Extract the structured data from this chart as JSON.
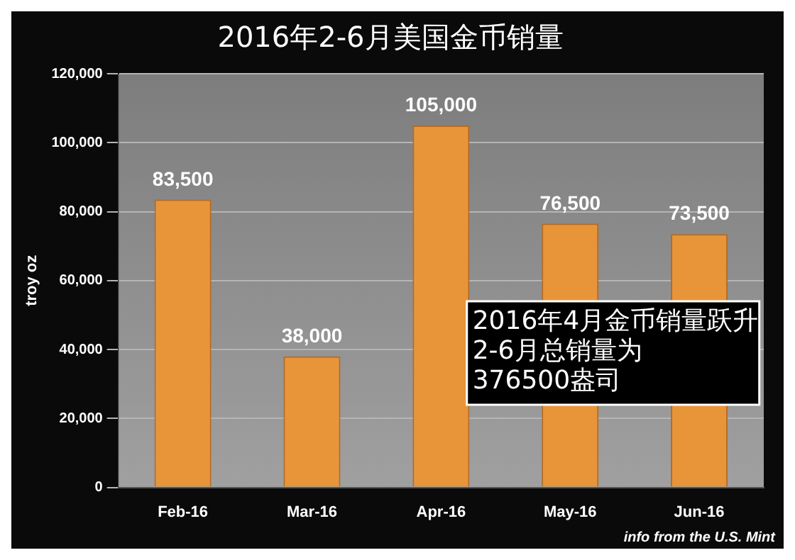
{
  "chart_data": {
    "type": "bar",
    "title": "2016年2-6月美国金币销量",
    "ylabel": "troy oz",
    "categories": [
      "Feb-16",
      "Mar-16",
      "Apr-16",
      "May-16",
      "Jun-16"
    ],
    "values": [
      83500,
      38000,
      105000,
      76500,
      73500
    ],
    "color": "#e8953a",
    "value_labels": [
      "83,500",
      "38,000",
      "105,000",
      "76,500",
      "73,500"
    ],
    "ylim": [
      0,
      120000
    ],
    "yticks": [
      0,
      {
        "value": 20000,
        "label": "20,000"
      },
      {
        "value": 40000,
        "label": "40,000"
      },
      {
        "value": 60000,
        "label": "60,000"
      },
      {
        "value": 80000,
        "label": "80,000"
      },
      {
        "value": 100000,
        "label": "100,000"
      },
      {
        "value": 120000,
        "label": "120,000"
      }
    ],
    "grid": "y",
    "annotations": [
      "2016年4月金币销量跃升\n2-6月总销量为\n376500盎司",
      "info from the U.S. Mint"
    ]
  }
}
